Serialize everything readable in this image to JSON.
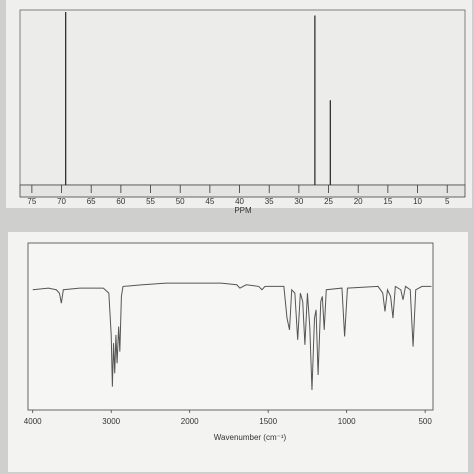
{
  "chart_data": [
    {
      "type": "stem",
      "x": [
        69.3,
        27.3,
        24.7
      ],
      "values": [
        1,
        0.98,
        0.49
      ],
      "xlim": [
        77,
        2
      ],
      "ylim": [
        0,
        1
      ],
      "xticks": [
        75,
        70,
        65,
        60,
        55,
        50,
        45,
        40,
        35,
        30,
        25,
        20,
        15,
        10,
        5
      ],
      "xlabel": "PPM",
      "color": "#222222"
    },
    {
      "type": "line",
      "xlim": [
        4060,
        450
      ],
      "ylim": [
        0,
        100
      ],
      "xticks": [
        4000,
        3000,
        2000,
        1500,
        1000,
        500
      ],
      "xlabel": "Wavenumber (cm⁻¹)",
      "x_expand_below": 2000,
      "x_expand_factor": 2,
      "color": "#555555",
      "x": [
        4000,
        3800,
        3700,
        3660,
        3635,
        3610,
        3400,
        3100,
        3030,
        3000,
        2985,
        2970,
        2955,
        2940,
        2925,
        2905,
        2890,
        2870,
        2850,
        2600,
        2300,
        2000,
        1800,
        1700,
        1680,
        1640,
        1560,
        1540,
        1520,
        1400,
        1380,
        1364,
        1350,
        1330,
        1312,
        1295,
        1280,
        1266,
        1250,
        1235,
        1221,
        1205,
        1195,
        1182,
        1165,
        1155,
        1143,
        1130,
        1030,
        1013,
        995,
        800,
        770,
        756,
        740,
        720,
        705,
        690,
        655,
        641,
        625,
        595,
        577,
        560,
        520,
        460
      ],
      "values": [
        72,
        73,
        72,
        70,
        64,
        72,
        73,
        73,
        70,
        45,
        14,
        40,
        22,
        45,
        28,
        50,
        35,
        68,
        74,
        75,
        76,
        76,
        76,
        75,
        73,
        75,
        74,
        72,
        74,
        74,
        55,
        48,
        72,
        70,
        42,
        70,
        65,
        39,
        70,
        50,
        12,
        55,
        60,
        21,
        65,
        68,
        48,
        72,
        73,
        44,
        73,
        74,
        70,
        59,
        72,
        68,
        55,
        74,
        72,
        66,
        74,
        72,
        38,
        72,
        74,
        74
      ]
    }
  ]
}
